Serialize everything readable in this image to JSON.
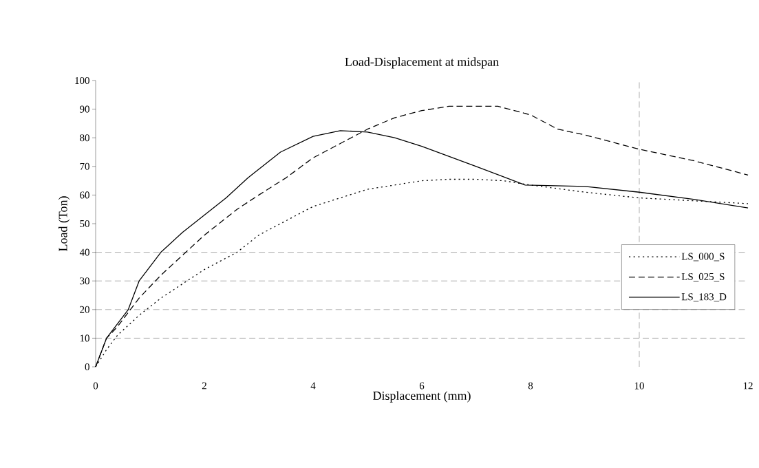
{
  "chart_data": {
    "type": "line",
    "title": "Load-Displacement at midspan",
    "xlabel": "Displacement (mm)",
    "ylabel": "Load (Ton)",
    "xlim": [
      0,
      12
    ],
    "xticks": [
      0,
      2,
      4,
      6,
      8,
      10,
      12
    ],
    "ylim": [
      0,
      100
    ],
    "yticks": [
      0,
      10,
      20,
      30,
      40,
      50,
      60,
      70,
      80,
      90,
      100
    ],
    "grid": false,
    "legend": "right",
    "marker": "none",
    "ref_lines": [
      {
        "axis": "y",
        "value": 10,
        "line_style": "dashed",
        "color": "#333333"
      },
      {
        "axis": "y",
        "value": 20,
        "line_style": "dashed",
        "color": "#333333"
      },
      {
        "axis": "y",
        "value": 30,
        "line_style": "dashed",
        "color": "#333333"
      },
      {
        "axis": "y",
        "value": 40,
        "line_style": "dashed",
        "color": "#333333"
      },
      {
        "axis": "x",
        "value": 10,
        "line_style": "dashed",
        "color": "#333333"
      }
    ],
    "series": [
      {
        "name": "LS_000_S",
        "color": "#000000",
        "line_style": "dotted",
        "x": [
          0,
          0.2,
          0.4,
          0.8,
          1.2,
          1.6,
          2,
          2.6,
          3,
          3.5,
          4,
          4.5,
          5,
          5.5,
          6,
          6.5,
          7,
          7.5,
          8,
          9,
          10,
          11,
          12
        ],
        "values": [
          0,
          6,
          11,
          18,
          24,
          29,
          34,
          40,
          46,
          51,
          56,
          59,
          62,
          63.5,
          65,
          65.5,
          65.5,
          65,
          63.5,
          61,
          59,
          58,
          57
        ]
      },
      {
        "name": "LS_025_S",
        "color": "#000000",
        "line_style": "dashed",
        "x": [
          0,
          0.2,
          0.4,
          0.8,
          1.2,
          1.6,
          2,
          2.6,
          3,
          3.5,
          4,
          4.5,
          5,
          5.5,
          6,
          6.5,
          7,
          7.4,
          8,
          8.5,
          9,
          10,
          11,
          12
        ],
        "values": [
          0,
          10,
          14,
          24,
          32,
          39,
          46,
          55,
          60,
          66,
          73,
          78,
          83,
          87,
          89.5,
          91,
          91,
          91,
          88,
          83,
          81,
          76,
          72,
          67
        ]
      },
      {
        "name": "LS_183_D",
        "color": "#000000",
        "line_style": "solid",
        "x": [
          0,
          0.1,
          0.2,
          0.4,
          0.6,
          0.8,
          1.2,
          1.6,
          2,
          2.4,
          2.8,
          3.4,
          4,
          4.5,
          5,
          5.5,
          6,
          7,
          7.9,
          9,
          10,
          11,
          12
        ],
        "values": [
          0,
          5,
          10,
          15,
          20,
          30,
          40,
          47,
          53,
          59,
          66,
          75,
          80.5,
          82.5,
          82,
          80,
          77,
          70,
          63.5,
          63,
          61,
          58.5,
          55.5
        ]
      }
    ]
  }
}
